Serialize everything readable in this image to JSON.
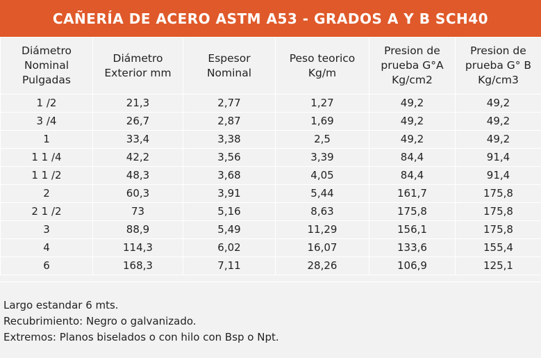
{
  "title": "CAÑERÍA DE ACERO ASTM A53 - GRADOS A Y B SCH40",
  "colors": {
    "header_bg": "#e0592a",
    "table_bg": "#f2f2f2",
    "grid_lines": "#ffffff"
  },
  "table": {
    "headers": [
      [
        "Diámetro",
        "Nominal",
        "Pulgadas"
      ],
      [
        "Diámetro",
        "Exterior mm"
      ],
      [
        "Espesor",
        "Nominal"
      ],
      [
        "Peso teorico",
        "Kg/m"
      ],
      [
        "Presion de",
        "prueba G°A",
        "Kg/cm2"
      ],
      [
        "Presion de",
        "prueba G° B",
        "Kg/cm3"
      ]
    ],
    "rows": [
      [
        "1 /2",
        "21,3",
        "2,77",
        "1,27",
        "49,2",
        "49,2"
      ],
      [
        "3 /4",
        "26,7",
        "2,87",
        "1,69",
        "49,2",
        "49,2"
      ],
      [
        "1",
        "33,4",
        "3,38",
        "2,5",
        "49,2",
        "49,2"
      ],
      [
        "1 1 /4",
        "42,2",
        "3,56",
        "3,39",
        "84,4",
        "91,4"
      ],
      [
        "1 1 /2",
        "48,3",
        "3,68",
        "4,05",
        "84,4",
        "91,4"
      ],
      [
        "2",
        "60,3",
        "3,91",
        "5,44",
        "161,7",
        "175,8"
      ],
      [
        "2 1 /2",
        "73",
        "5,16",
        "8,63",
        "175,8",
        "175,8"
      ],
      [
        "3",
        "88,9",
        "5,49",
        "11,29",
        "156,1",
        "175,8"
      ],
      [
        "4",
        "114,3",
        "6,02",
        "16,07",
        "133,6",
        "155,4"
      ],
      [
        "6",
        "168,3",
        "7,11",
        "28,26",
        "106,9",
        "125,1"
      ]
    ]
  },
  "notes": [
    "Largo estandar 6 mts.",
    "Recubrimiento: Negro o galvanizado.",
    "Extremos: Planos biselados o con hilo con Bsp o Npt."
  ]
}
